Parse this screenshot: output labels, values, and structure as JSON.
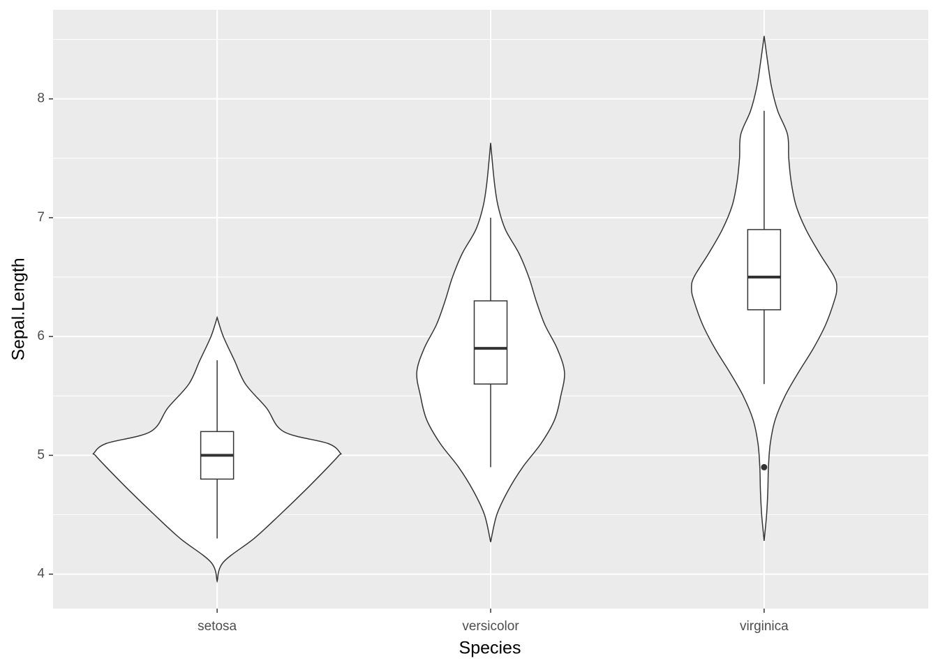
{
  "chart_data": {
    "type": "violin",
    "x_label": "Species",
    "y_label": "Sepal.Length",
    "categories": [
      "setosa",
      "versicolor",
      "virginica"
    ],
    "ylim": [
      3.71,
      8.75
    ],
    "yticks": [
      4,
      5,
      6,
      7,
      8
    ],
    "minor_yticks": [
      4.5,
      5.5,
      6.5,
      7.5,
      8.5
    ],
    "grid": true,
    "panel_color": "#ebebeb",
    "violin_fill": "#ffffff",
    "line_color": "#333333",
    "groups": [
      {
        "box": {
          "min": 4.3,
          "q1": 4.8,
          "median": 5.0,
          "q3": 5.2,
          "max": 5.8
        },
        "outliers": [],
        "violin": {
          "y": [
            3.94,
            4.1,
            4.3,
            4.5,
            4.7,
            4.9,
            5.0,
            5.02,
            5.1,
            5.2,
            5.4,
            5.6,
            5.8,
            6.0,
            6.16
          ],
          "width": [
            0,
            0.05,
            0.3,
            0.51,
            0.71,
            0.9,
            0.99,
            1.0,
            0.9,
            0.54,
            0.4,
            0.23,
            0.14,
            0.05,
            0
          ]
        }
      },
      {
        "box": {
          "min": 4.9,
          "q1": 5.6,
          "median": 5.9,
          "q3": 6.3,
          "max": 7.0
        },
        "outliers": [],
        "violin": {
          "y": [
            4.27,
            4.5,
            4.7,
            4.9,
            5.1,
            5.3,
            5.5,
            5.7,
            5.9,
            6.1,
            6.3,
            6.5,
            6.7,
            6.9,
            7.1,
            7.3,
            7.63
          ],
          "width": [
            0,
            0.05,
            0.14,
            0.26,
            0.41,
            0.52,
            0.57,
            0.6,
            0.54,
            0.44,
            0.37,
            0.31,
            0.23,
            0.12,
            0.06,
            0.03,
            0
          ]
        }
      },
      {
        "box": {
          "min": 5.6,
          "q1": 6.225,
          "median": 6.5,
          "q3": 6.9,
          "max": 7.9
        },
        "outliers": [
          4.9
        ],
        "violin": {
          "y": [
            4.28,
            4.5,
            4.7,
            4.9,
            5.1,
            5.3,
            5.5,
            5.7,
            5.9,
            6.1,
            6.3,
            6.4,
            6.5,
            6.7,
            6.9,
            7.1,
            7.3,
            7.5,
            7.7,
            7.9,
            8.1,
            8.3,
            8.53
          ],
          "width": [
            0,
            0.02,
            0.03,
            0.035,
            0.05,
            0.09,
            0.17,
            0.28,
            0.4,
            0.5,
            0.57,
            0.59,
            0.57,
            0.45,
            0.34,
            0.26,
            0.22,
            0.2,
            0.19,
            0.11,
            0.06,
            0.03,
            0
          ]
        }
      }
    ]
  }
}
